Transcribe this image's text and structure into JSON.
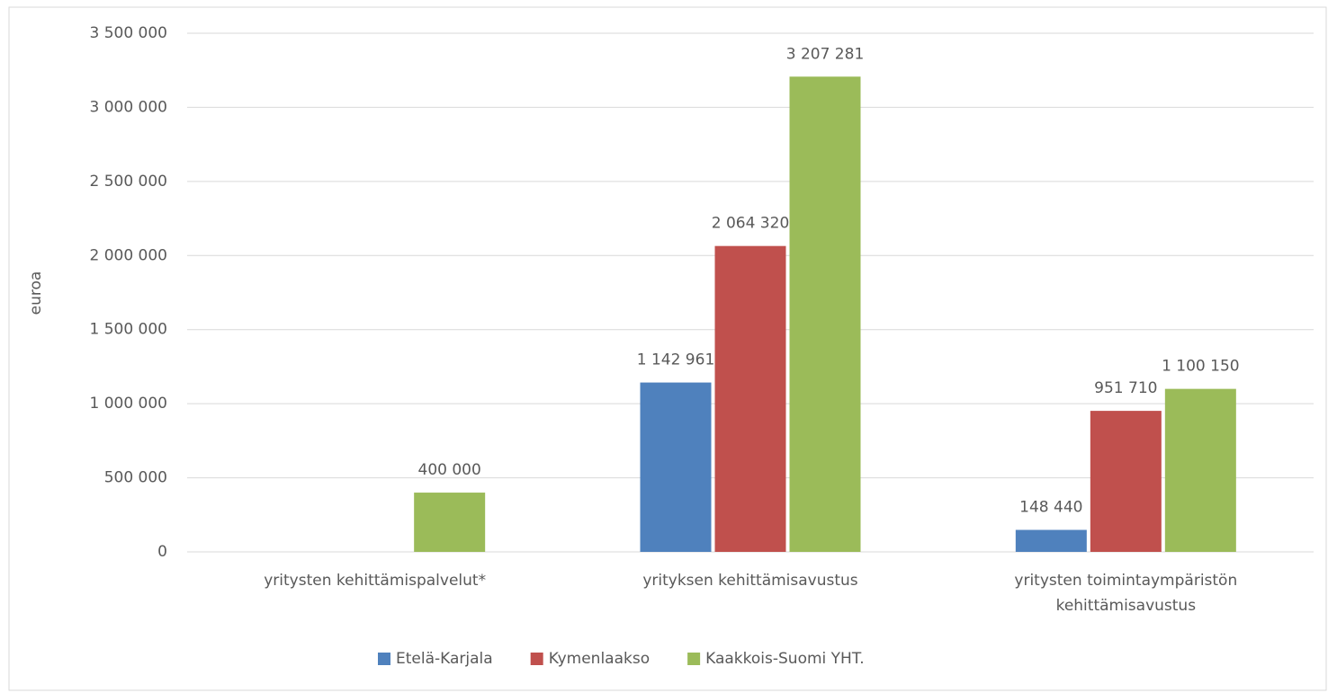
{
  "chart_data": {
    "type": "bar",
    "y_label": "euroa",
    "categories": [
      "yritysten kehittämispalvelut*",
      "yrityksen kehittämisavustus",
      "yritysten toimintaympäristön kehittämisavustus"
    ],
    "series": [
      {
        "name": "Etelä-Karjala",
        "color": "#4f81bd",
        "values": [
          null,
          1142961,
          148440
        ],
        "value_labels": [
          null,
          "1 142 961",
          "148 440"
        ]
      },
      {
        "name": "Kymenlaakso",
        "color": "#c0504d",
        "values": [
          null,
          2064320,
          951710
        ],
        "value_labels": [
          null,
          "2 064 320",
          "951 710"
        ]
      },
      {
        "name": "Kaakkois-Suomi YHT.",
        "color": "#9bbb59",
        "values": [
          400000,
          3207281,
          1100150
        ],
        "value_labels": [
          "400 000",
          "3 207 281",
          "1 100 150"
        ]
      }
    ],
    "ylim": [
      0,
      3500000
    ],
    "yticks": [
      0,
      {
        "value": 500000,
        "label": "500 000"
      },
      {
        "value": 1000000,
        "label": "1 000 000"
      },
      {
        "value": 1500000,
        "label": "1 500 000"
      },
      {
        "value": 2000000,
        "label": "2 000 000"
      },
      {
        "value": 2500000,
        "label": "2 500 000"
      },
      {
        "value": 3000000,
        "label": "3 000 000"
      },
      {
        "value": 3500000,
        "label": "3 500 000"
      }
    ],
    "grid": true,
    "legend": "bottom"
  }
}
